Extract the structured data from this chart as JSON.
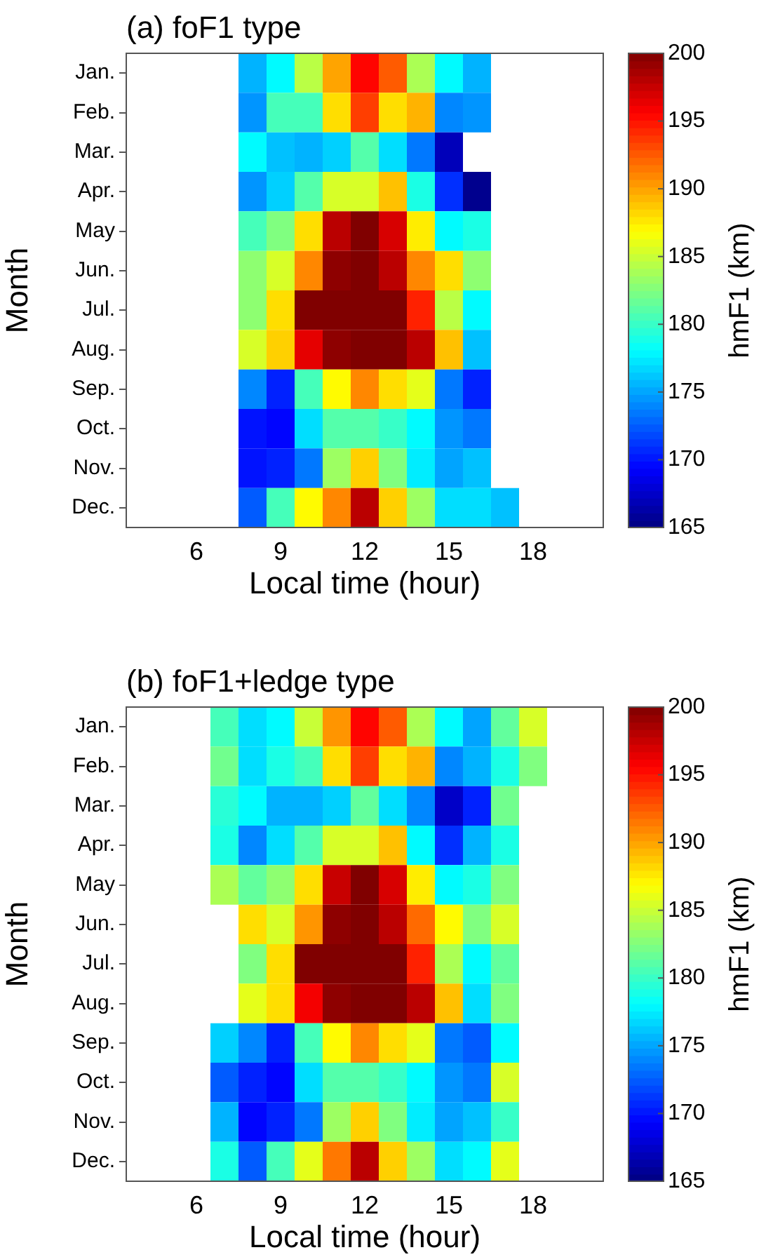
{
  "chart_data": [
    {
      "type": "heatmap",
      "title": "(a) foF1 type",
      "xlabel": "Local time (hour)",
      "ylabel": "Month",
      "clabel": "hmF1 (km)",
      "x": [
        8,
        9,
        10,
        11,
        12,
        13,
        14,
        15,
        16,
        17
      ],
      "y_categories": [
        "Jan.",
        "Feb.",
        "Mar.",
        "Apr.",
        "May",
        "Jun.",
        "Jul.",
        "Aug.",
        "Sep.",
        "Oct.",
        "Nov.",
        "Dec."
      ],
      "cells": [
        [
          175.5,
          178,
          184.5,
          190,
          195.5,
          192.5,
          184,
          178,
          175.5,
          null
        ],
        [
          174.5,
          180.5,
          180.5,
          188,
          193.5,
          188,
          189.5,
          174,
          174.5,
          null
        ],
        [
          178,
          176,
          175.5,
          176.5,
          181,
          177,
          173.5,
          167,
          null,
          null
        ],
        [
          174.5,
          176.5,
          181,
          185.5,
          185.5,
          189,
          179,
          171,
          165.5,
          null
        ],
        [
          180.5,
          182.5,
          188,
          198,
          200,
          197,
          187.5,
          178,
          179,
          null
        ],
        [
          183,
          185.5,
          191,
          199.5,
          200,
          198,
          191,
          188,
          183,
          null
        ],
        [
          183,
          188,
          200,
          200,
          200,
          200,
          194.5,
          184.5,
          178,
          null
        ],
        [
          185.5,
          188.5,
          196.5,
          199.5,
          200,
          200,
          198,
          189,
          176,
          null
        ],
        [
          174,
          170.5,
          180.5,
          187,
          191,
          188,
          186,
          173.5,
          170.5,
          null
        ],
        [
          170,
          169.5,
          177,
          181,
          181,
          180,
          178,
          174.5,
          173.5,
          null
        ],
        [
          170,
          170.5,
          173.5,
          183.5,
          188.5,
          182.5,
          177.5,
          175,
          176,
          null
        ],
        [
          172.5,
          180.5,
          187,
          191,
          198,
          188.5,
          183.5,
          177,
          177,
          176
        ]
      ],
      "xlim": [
        3.5,
        20.5
      ],
      "xticks": [
        6,
        9,
        12,
        15,
        18
      ],
      "clim": [
        165,
        200
      ],
      "cticks": [
        165,
        170,
        175,
        180,
        185,
        190,
        195,
        200
      ]
    },
    {
      "type": "heatmap",
      "title": "(b) foF1+ledge type",
      "xlabel": "Local time (hour)",
      "ylabel": "Month",
      "clabel": "hmF1 (km)",
      "x": [
        7,
        8,
        9,
        10,
        11,
        12,
        13,
        14,
        15,
        16,
        17,
        18
      ],
      "y_categories": [
        "Jan.",
        "Feb.",
        "Mar.",
        "Apr.",
        "May",
        "Jun.",
        "Jul.",
        "Aug.",
        "Sep.",
        "Oct.",
        "Nov.",
        "Dec."
      ],
      "cells": [
        [
          180.5,
          177,
          178,
          185,
          190.5,
          195.5,
          192.5,
          184,
          178,
          175,
          181.5,
          185.5
        ],
        [
          182,
          177,
          179,
          180.5,
          188,
          193.5,
          188,
          189.5,
          174,
          175.5,
          179,
          182.5
        ],
        [
          179.5,
          178,
          175.5,
          175.5,
          176.5,
          181.5,
          177,
          174,
          167.5,
          170.5,
          182,
          null
        ],
        [
          179,
          174,
          177,
          181,
          185.5,
          185.5,
          189,
          178,
          171,
          175.5,
          179,
          null
        ],
        [
          184,
          181.5,
          183,
          188,
          197.5,
          200,
          197,
          187.5,
          178,
          179,
          182.5,
          null
        ],
        [
          null,
          188,
          185.5,
          190.5,
          199.5,
          200,
          198,
          192,
          187,
          182.5,
          185.5,
          null
        ],
        [
          null,
          182.5,
          188,
          200,
          200,
          200,
          200,
          194.5,
          184,
          178,
          181.5,
          null
        ],
        [
          null,
          186,
          188,
          196,
          199.5,
          200,
          200,
          198,
          189,
          177,
          182.5,
          null
        ],
        [
          176.5,
          174,
          170.5,
          180.5,
          187,
          191,
          188,
          186,
          173.5,
          172.5,
          178,
          null
        ],
        [
          172.5,
          170.5,
          169.5,
          177,
          181,
          181,
          180,
          178,
          174.5,
          173.5,
          185.5,
          null
        ],
        [
          175.5,
          169.5,
          170.5,
          173.5,
          183.5,
          188.5,
          182.5,
          177.5,
          175,
          176,
          180,
          null
        ],
        [
          179,
          172.5,
          180.5,
          186,
          191.5,
          198,
          188.5,
          183.5,
          177,
          178,
          186,
          null
        ]
      ],
      "xlim": [
        3.5,
        20.5
      ],
      "xticks": [
        6,
        9,
        12,
        15,
        18
      ],
      "clim": [
        165,
        200
      ],
      "cticks": [
        165,
        170,
        175,
        180,
        185,
        190,
        195,
        200
      ]
    }
  ]
}
